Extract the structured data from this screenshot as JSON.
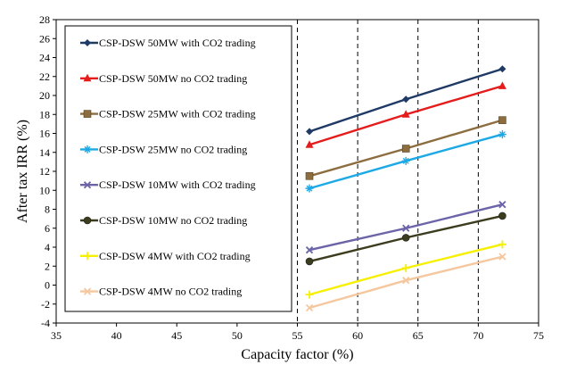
{
  "chart_data": {
    "type": "line",
    "title": "",
    "xlabel": "Capacity factor (%)",
    "ylabel": "After tax IRR (%)",
    "xlim": [
      35,
      75
    ],
    "ylim": [
      -4,
      28
    ],
    "xticks": [
      35,
      40,
      45,
      50,
      55,
      60,
      65,
      70,
      75
    ],
    "yticks": [
      -4,
      -2,
      0,
      2,
      4,
      6,
      8,
      10,
      12,
      14,
      16,
      18,
      20,
      22,
      24,
      26,
      28
    ],
    "x": [
      56,
      64,
      72
    ],
    "grid": "vertical dashed at x ticks from 55",
    "legend_position": "upper-left",
    "series": [
      {
        "name": "CSP-DSW 50MW with CO2 trading",
        "values": [
          16.2,
          19.6,
          22.8
        ],
        "color": "#1f3a64",
        "marker": "diamond"
      },
      {
        "name": "CSP-DSW 50MW no CO2 trading",
        "values": [
          14.8,
          18.0,
          21.0
        ],
        "color": "#e41c1c",
        "marker": "triangle"
      },
      {
        "name": "CSP-DSW 25MW with CO2 trading",
        "values": [
          11.5,
          14.4,
          17.4
        ],
        "color": "#8c6d3f",
        "marker": "square"
      },
      {
        "name": "CSP-DSW 25MW no CO2 trading",
        "values": [
          10.2,
          13.1,
          15.9
        ],
        "color": "#1ca9e6",
        "marker": "star"
      },
      {
        "name": "CSP-DSW 10MW with CO2 trading",
        "values": [
          3.7,
          6.0,
          8.5
        ],
        "color": "#6b64a8",
        "marker": "x"
      },
      {
        "name": "CSP-DSW 10MW no CO2 trading",
        "values": [
          2.5,
          5.0,
          7.3
        ],
        "color": "#3c3c1e",
        "marker": "circle"
      },
      {
        "name": "CSP-DSW 4MW with CO2 trading",
        "values": [
          -1.0,
          1.8,
          4.3
        ],
        "color": "#f5f000",
        "marker": "plus"
      },
      {
        "name": "CSP-DSW 4MW no CO2 trading",
        "values": [
          -2.4,
          0.5,
          3.0
        ],
        "color": "#f5c79e",
        "marker": "x"
      }
    ]
  }
}
